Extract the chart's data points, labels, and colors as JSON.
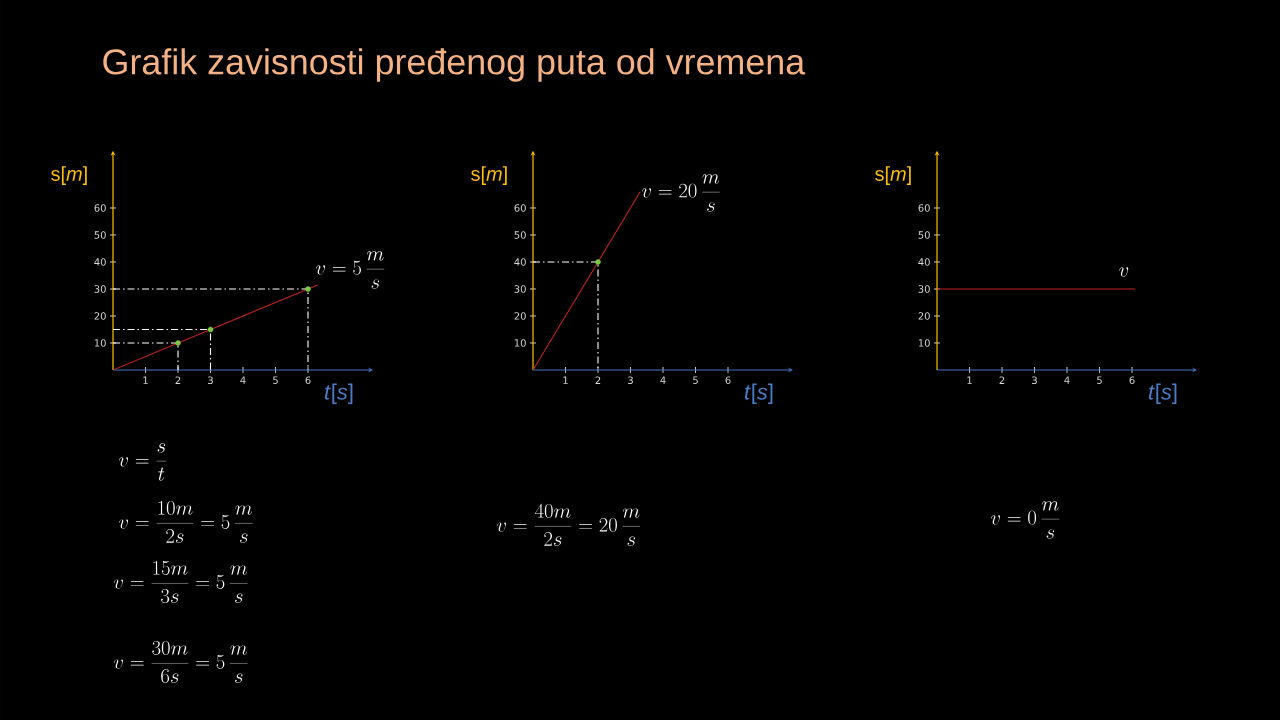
{
  "chart_data": [
    {
      "type": "line",
      "title": "Grafik zavisnosti pređenog puta od vremena",
      "xlabel": "*t*[*s*]",
      "ylabel": "s[*m*]",
      "xlim": [
        0,
        7.9
      ],
      "ylim": [
        0,
        80
      ],
      "xticks": [
        1,
        2,
        3,
        4,
        5,
        6
      ],
      "yticks": [
        10,
        20,
        30,
        40,
        50,
        60
      ],
      "legend": false,
      "series": [
        {
          "color": "#c0201c",
          "marker": "none",
          "line_style": "solid",
          "x": [
            0,
            6.3
          ],
          "values": [
            0,
            31.5
          ]
        },
        {
          "color": "#ffffff",
          "marker": "none",
          "line_style": "dashed",
          "x": [
            0,
            2,
            2
          ],
          "values": [
            10,
            10,
            0
          ]
        },
        {
          "color": "#ffffff",
          "marker": "none",
          "line_style": "dashed",
          "x": [
            0,
            3,
            3
          ],
          "values": [
            15,
            15,
            0
          ]
        },
        {
          "color": "#ffffff",
          "marker": "none",
          "line_style": "dashed",
          "x": [
            0,
            6,
            6
          ],
          "values": [
            30,
            30,
            0
          ]
        },
        {
          "type": "scatter",
          "color": "#7ac943",
          "marker": "circle",
          "x": [
            2,
            3,
            6
          ],
          "values": [
            10,
            15,
            30
          ]
        }
      ],
      "annotations": [
        "v = 5\\,\\frac{m}{s}",
        "v = \\frac{s}{t}",
        "v = \\frac{10m}{2s} = 5\\,\\frac{m}{s}",
        "v = \\frac{15m}{3s} = 5\\,\\frac{m}{s}",
        "v = \\frac{30m}{6s} = 5\\,\\frac{m}{s}"
      ]
    },
    {
      "type": "line",
      "xlabel": "*t*[*s*]",
      "ylabel": "s[*m*]",
      "xlim": [
        0,
        7.9
      ],
      "ylim": [
        0,
        80
      ],
      "xticks": [
        1,
        2,
        3,
        4,
        5,
        6
      ],
      "yticks": [
        10,
        20,
        30,
        40,
        50,
        60
      ],
      "legend": false,
      "series": [
        {
          "color": "#c0201c",
          "marker": "none",
          "line_style": "solid",
          "x": [
            0,
            3.3
          ],
          "values": [
            0,
            66
          ]
        },
        {
          "color": "#ffffff",
          "marker": "none",
          "line_style": "dashed",
          "x": [
            0,
            2,
            2
          ],
          "values": [
            40,
            40,
            0
          ]
        },
        {
          "type": "scatter",
          "color": "#7ac943",
          "marker": "circle",
          "x": [
            2
          ],
          "values": [
            40
          ]
        }
      ],
      "annotations": [
        "v = 20\\,\\frac{m}{s}",
        "v = \\frac{40m}{2s} = 20\\,\\frac{m}{s}"
      ]
    },
    {
      "type": "line",
      "xlabel": "*t*[*s*]",
      "ylabel": "s[*m*]",
      "xlim": [
        0,
        7.9
      ],
      "ylim": [
        0,
        80
      ],
      "xticks": [
        1,
        2,
        3,
        4,
        5,
        6
      ],
      "yticks": [
        10,
        20,
        30,
        40,
        50,
        60
      ],
      "legend": false,
      "series": [
        {
          "color": "#c0201c",
          "marker": "none",
          "line_style": "solid",
          "x": [
            0,
            6.1
          ],
          "values": [
            30,
            30
          ]
        }
      ],
      "annotations": [
        "v",
        "v = 0\\,\\frac{m}{s}"
      ]
    }
  ]
}
